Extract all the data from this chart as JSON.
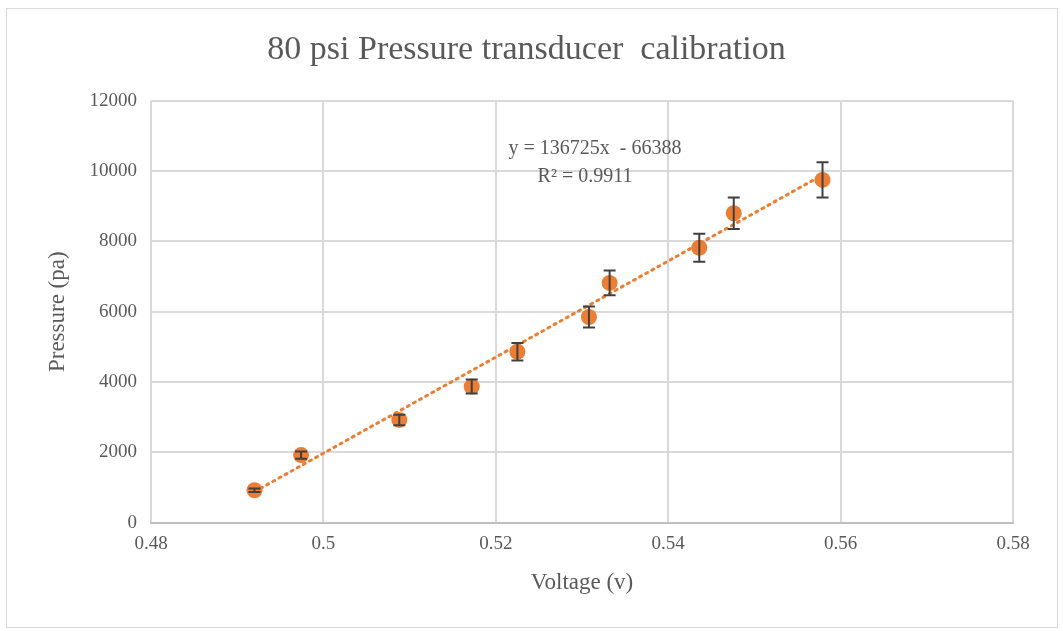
{
  "chart_data": {
    "type": "scatter",
    "title": "80 psi Pressure transducer  calibration",
    "xlabel": "Voltage (v)",
    "ylabel": "Pressure (pa)",
    "xlim": [
      0.48,
      0.58
    ],
    "xticks": [
      0.48,
      0.5,
      0.52,
      0.54,
      0.56,
      0.58
    ],
    "ylim": [
      0,
      12000
    ],
    "yticks": [
      0,
      2000,
      4000,
      6000,
      8000,
      10000,
      12000
    ],
    "grid": true,
    "legend": false,
    "marker": "circle",
    "series": [
      {
        "color": "#ed7d31",
        "x": [
          0.492,
          0.4974,
          0.5088,
          0.5172,
          0.5225,
          0.5308,
          0.5332,
          0.5436,
          0.5476,
          0.5579
        ],
        "values": [
          920,
          1920,
          2920,
          3870,
          4860,
          5850,
          6820,
          7820,
          8800,
          9750
        ],
        "errors": [
          50,
          100,
          150,
          200,
          250,
          300,
          350,
          400,
          450,
          500
        ]
      },
      {
        "type": "line",
        "color": "#ed7d31",
        "line_style": "dotted",
        "marker": "none",
        "x": [
          0.492,
          0.5579
        ],
        "values": [
          880,
          9890
        ]
      }
    ],
    "annotations": [
      "y = 136725x  - 66388",
      "R² = 0.9911"
    ]
  }
}
